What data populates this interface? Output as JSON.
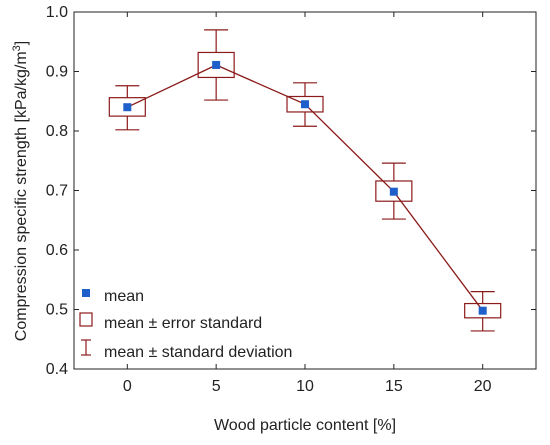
{
  "chart_data": {
    "type": "box",
    "xlabel": "Wood particle content [%]",
    "ylabel_main": "Compression specific strength [kPa/kg/m",
    "ylabel_sup": "3",
    "ylabel_end": "]",
    "categories": [
      "0",
      "5",
      "10",
      "15",
      "20"
    ],
    "x": [
      0,
      5,
      10,
      15,
      20
    ],
    "xlim": [
      -3,
      23
    ],
    "ylim": [
      0.4,
      1.0
    ],
    "yticks": [
      0.4,
      0.5,
      0.6,
      0.7,
      0.8,
      0.9,
      1.0
    ],
    "ytick_labels": [
      "0.4",
      "0.5",
      "0.6",
      "0.7",
      "0.8",
      "0.9",
      "1.0"
    ],
    "series": [
      {
        "role": "mean",
        "values": [
          0.84,
          0.911,
          0.845,
          0.698,
          0.498
        ]
      },
      {
        "role": "error_standard",
        "lower": [
          0.825,
          0.89,
          0.832,
          0.682,
          0.486
        ],
        "upper": [
          0.856,
          0.932,
          0.858,
          0.716,
          0.51
        ]
      },
      {
        "role": "standard_deviation",
        "lower": [
          0.802,
          0.852,
          0.808,
          0.652,
          0.464
        ],
        "upper": [
          0.876,
          0.97,
          0.881,
          0.746,
          0.53
        ]
      }
    ],
    "legend": {
      "position": "bottom-left",
      "entries": [
        "mean",
        "mean ± error standard",
        "mean ± standard deviation"
      ]
    },
    "grid": false,
    "colors": {
      "mean_marker": "#1f5fc9",
      "line": "#8b1a1a",
      "box": "#8b1a1a",
      "whisker": "#8b1a1a",
      "axis": "#222222"
    }
  }
}
